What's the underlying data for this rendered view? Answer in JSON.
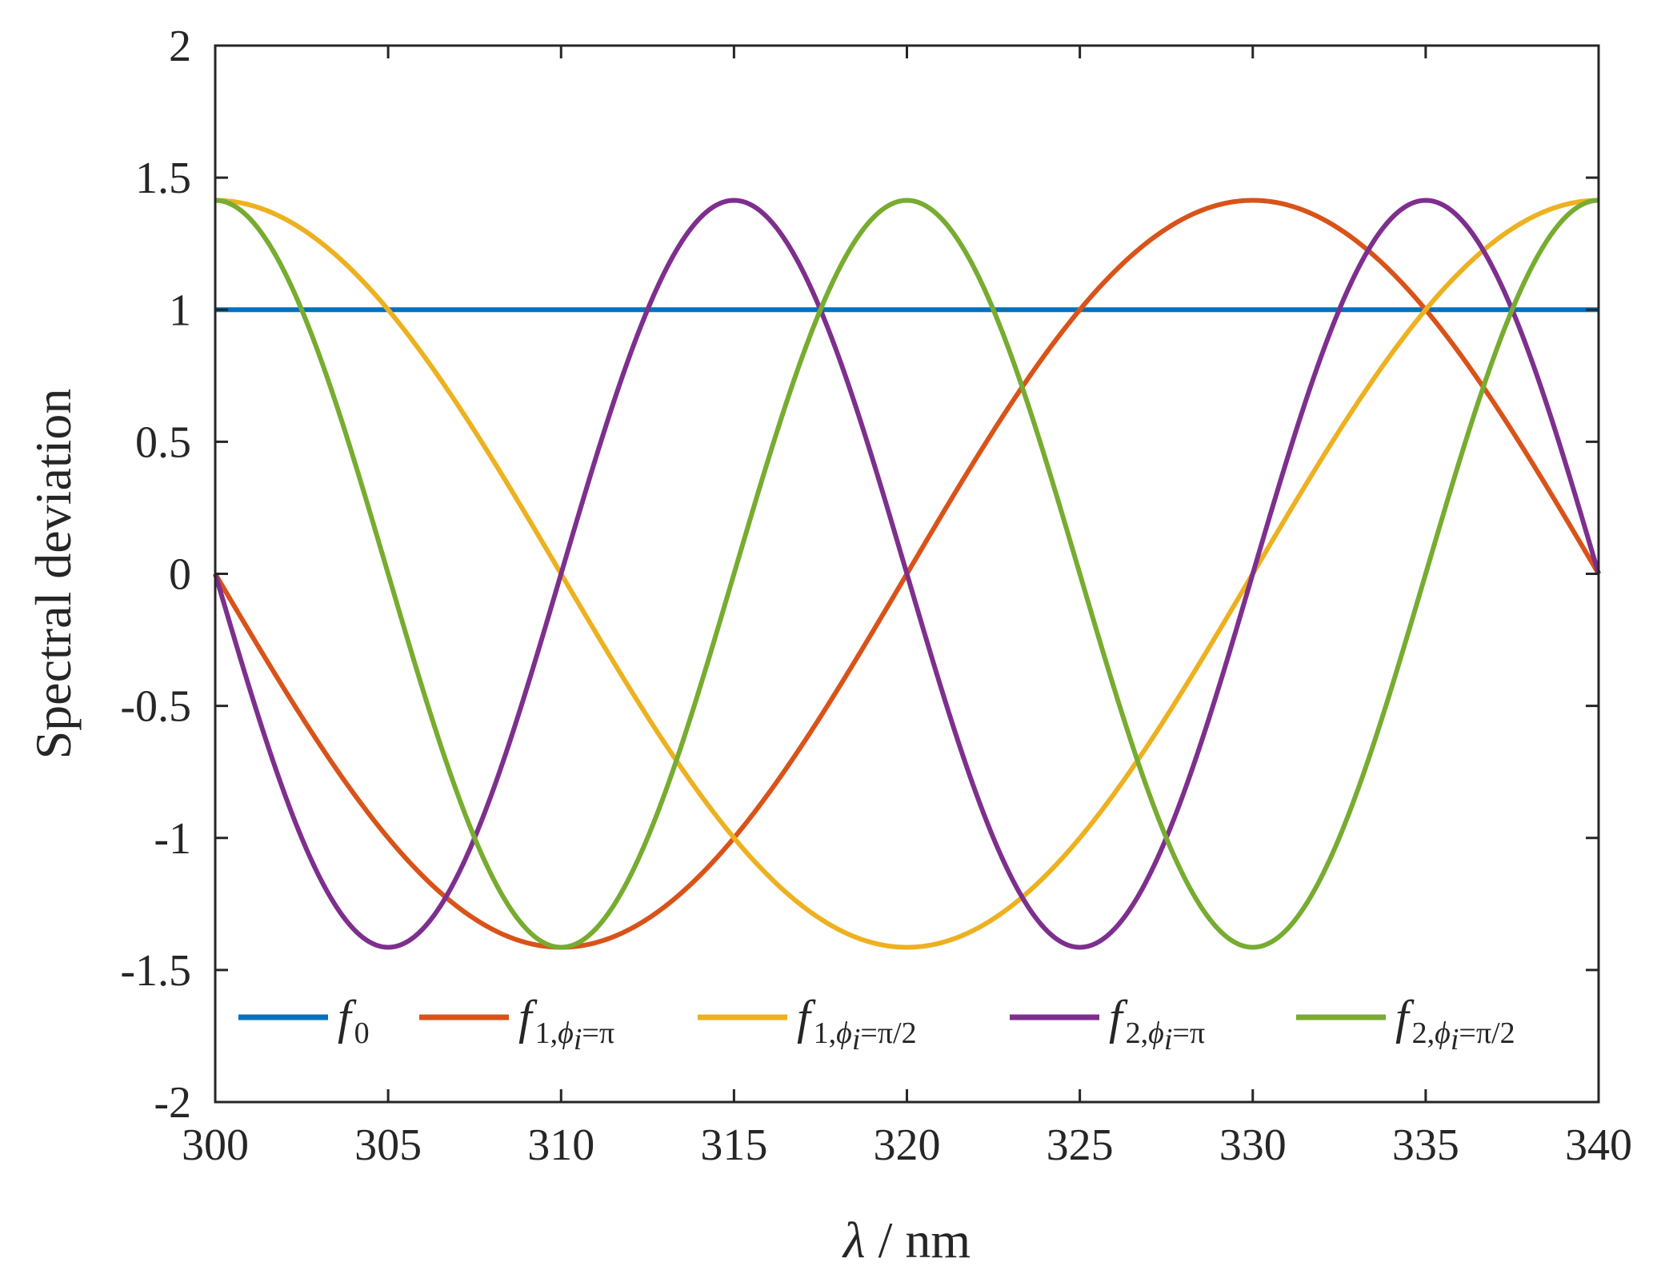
{
  "chart_data": {
    "type": "line",
    "xlabel_symbol": "λ",
    "xlabel_unit": "/ nm",
    "ylabel": "Spectral deviation",
    "xlim": [
      300,
      340
    ],
    "ylim": [
      -2,
      2
    ],
    "xticks": [
      300,
      305,
      310,
      315,
      320,
      325,
      330,
      335,
      340
    ],
    "yticks": [
      -2,
      -1.5,
      -1,
      -0.5,
      0,
      0.5,
      1,
      1.5,
      2
    ],
    "ytick_labels": [
      "-2",
      "-1.5",
      "-1",
      "-0.5",
      "0",
      "0.5",
      "1",
      "1.5",
      "2"
    ],
    "legend_position": "bottom",
    "series": [
      {
        "main": "f",
        "sub": "0",
        "sub_phi": "",
        "sub_tail": "",
        "color": "#0072BD",
        "function": "constant",
        "amplitude": 1,
        "cycles": 0
      },
      {
        "main": "f",
        "sub": "1,",
        "sub_phi": "ϕ",
        "sub_i": "i",
        "sub_tail": "=π",
        "color": "#D95319",
        "function": "sin",
        "amplitude": 1.414,
        "cycles": 1,
        "sign": -1
      },
      {
        "main": "f",
        "sub": "1,",
        "sub_phi": "ϕ",
        "sub_i": "i",
        "sub_tail": "=π/2",
        "color": "#EDB120",
        "function": "cos",
        "amplitude": 1.414,
        "cycles": 1,
        "sign": 1
      },
      {
        "main": "f",
        "sub": "2,",
        "sub_phi": "ϕ",
        "sub_i": "i",
        "sub_tail": "=π",
        "color": "#7E2F8E",
        "function": "sin",
        "amplitude": 1.414,
        "cycles": 2,
        "sign": -1
      },
      {
        "main": "f",
        "sub": "2,",
        "sub_phi": "ϕ",
        "sub_i": "i",
        "sub_tail": "=π/2",
        "color": "#77AC30",
        "function": "cos",
        "amplitude": 1.414,
        "cycles": 2,
        "sign": 1
      }
    ]
  }
}
